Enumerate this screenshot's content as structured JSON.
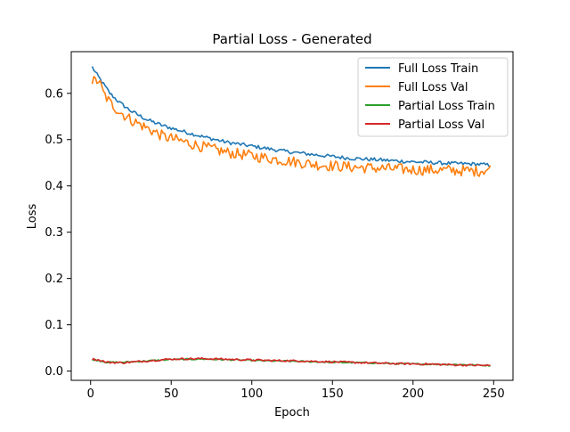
{
  "chart_data": {
    "type": "line",
    "title": "Partial Loss - Generated",
    "xlabel": "Epoch",
    "ylabel": "Loss",
    "xlim": [
      -12,
      262
    ],
    "ylim": [
      -0.02,
      0.69
    ],
    "xticks": [
      0,
      50,
      100,
      150,
      200,
      250
    ],
    "yticks": [
      0.0,
      0.1,
      0.2,
      0.3,
      0.4,
      0.5,
      0.6
    ],
    "ytick_labels": [
      "0.0",
      "0.1",
      "0.2",
      "0.3",
      "0.4",
      "0.5",
      "0.6"
    ],
    "grid": false,
    "legend_position": "top-right",
    "x_range": [
      1,
      248
    ],
    "series": [
      {
        "name": "Full Loss Train",
        "color": "#1f77b4",
        "noise": 0.004,
        "points": [
          [
            1,
            0.657
          ],
          [
            3,
            0.645
          ],
          [
            5,
            0.635
          ],
          [
            8,
            0.62
          ],
          [
            12,
            0.6
          ],
          [
            18,
            0.58
          ],
          [
            25,
            0.562
          ],
          [
            35,
            0.543
          ],
          [
            45,
            0.53
          ],
          [
            55,
            0.52
          ],
          [
            70,
            0.506
          ],
          [
            85,
            0.494
          ],
          [
            100,
            0.486
          ],
          [
            120,
            0.475
          ],
          [
            140,
            0.467
          ],
          [
            160,
            0.46
          ],
          [
            180,
            0.456
          ],
          [
            200,
            0.452
          ],
          [
            220,
            0.449
          ],
          [
            240,
            0.447
          ],
          [
            248,
            0.445
          ]
        ]
      },
      {
        "name": "Full Loss Val",
        "color": "#ff7f0e",
        "noise": 0.012,
        "points": [
          [
            1,
            0.627
          ],
          [
            3,
            0.626
          ],
          [
            5,
            0.628
          ],
          [
            8,
            0.6
          ],
          [
            12,
            0.58
          ],
          [
            18,
            0.56
          ],
          [
            25,
            0.543
          ],
          [
            35,
            0.525
          ],
          [
            45,
            0.507
          ],
          [
            55,
            0.498
          ],
          [
            70,
            0.484
          ],
          [
            85,
            0.472
          ],
          [
            100,
            0.465
          ],
          [
            120,
            0.455
          ],
          [
            140,
            0.446
          ],
          [
            160,
            0.441
          ],
          [
            180,
            0.438
          ],
          [
            200,
            0.435
          ],
          [
            220,
            0.434
          ],
          [
            240,
            0.432
          ],
          [
            248,
            0.437
          ]
        ]
      },
      {
        "name": "Partial Loss Train",
        "color": "#2ca02c",
        "noise": 0.0015,
        "points": [
          [
            1,
            0.025
          ],
          [
            5,
            0.023
          ],
          [
            10,
            0.019
          ],
          [
            20,
            0.019
          ],
          [
            35,
            0.022
          ],
          [
            50,
            0.025
          ],
          [
            70,
            0.026
          ],
          [
            90,
            0.024
          ],
          [
            110,
            0.022
          ],
          [
            130,
            0.021
          ],
          [
            150,
            0.019
          ],
          [
            170,
            0.018
          ],
          [
            190,
            0.016
          ],
          [
            210,
            0.015
          ],
          [
            230,
            0.014
          ],
          [
            248,
            0.012
          ]
        ]
      },
      {
        "name": "Partial Loss Val",
        "color": "#d62728",
        "noise": 0.002,
        "points": [
          [
            1,
            0.026
          ],
          [
            5,
            0.024
          ],
          [
            10,
            0.019
          ],
          [
            20,
            0.018
          ],
          [
            35,
            0.022
          ],
          [
            50,
            0.026
          ],
          [
            70,
            0.027
          ],
          [
            90,
            0.025
          ],
          [
            110,
            0.023
          ],
          [
            130,
            0.022
          ],
          [
            150,
            0.02
          ],
          [
            170,
            0.018
          ],
          [
            190,
            0.016
          ],
          [
            210,
            0.015
          ],
          [
            230,
            0.013
          ],
          [
            248,
            0.012
          ]
        ]
      }
    ]
  }
}
